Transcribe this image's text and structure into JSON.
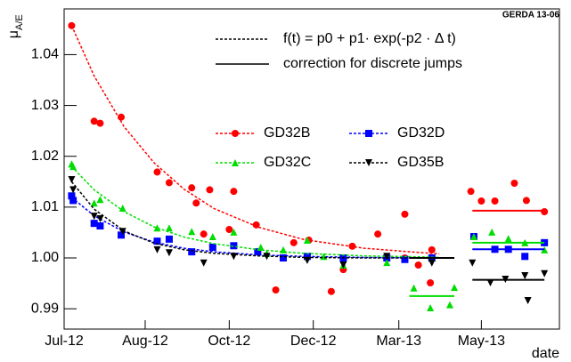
{
  "chart_data": {
    "type": "scatter",
    "corner_label": "GERDA 13-06",
    "ylabel": "μ",
    "ylabel_sub": "A/E",
    "xlabel": "date",
    "fit_label": "f(t) = p0 + p1· exp(-p2 · Δ t)",
    "jump_label": "correction for discrete jumps",
    "xlim": [
      0,
      330
    ],
    "ylim": [
      0.986,
      1.049
    ],
    "xticks": [
      {
        "value": 0,
        "label": "Jul-12"
      },
      {
        "value": 54,
        "label": "Aug-12"
      },
      {
        "value": 110,
        "label": "Oct-12"
      },
      {
        "value": 166,
        "label": "Dec-12"
      },
      {
        "value": 223,
        "label": "Mar-13"
      },
      {
        "value": 278,
        "label": "May-13"
      }
    ],
    "yticks": [
      0.99,
      {
        "value": 1,
        "label": "1.00"
      },
      1.01,
      1.02,
      1.03,
      1.04
    ],
    "series": [
      {
        "name": "GD32B",
        "color": "#ff0000",
        "marker": "circle",
        "x": [
          5,
          20,
          24,
          38,
          62,
          70,
          85,
          88,
          97,
          93,
          113,
          110,
          128,
          141,
          153,
          163,
          178,
          186,
          192,
          209,
          227,
          227,
          236,
          244,
          245,
          271,
          278,
          287,
          300,
          308,
          320
        ],
        "values": [
          1.0457,
          1.0269,
          1.0265,
          1.0277,
          1.0169,
          1.0148,
          1.0138,
          1.0108,
          1.0134,
          1.0047,
          1.0131,
          1.0056,
          1.0065,
          0.9937,
          1.003,
          1.0035,
          0.9934,
          0.9977,
          1.0023,
          1.0047,
          1.0,
          1.0086,
          0.9986,
          0.9951,
          1.0016,
          1.0131,
          1.0112,
          1.0112,
          1.0147,
          1.0113,
          1.0091
        ],
        "fit_x": [
          5,
          20,
          40,
          60,
          80,
          100,
          130,
          160,
          200,
          240,
          250
        ],
        "fit": [
          1.0457,
          1.0358,
          1.0258,
          1.0187,
          1.0135,
          1.0097,
          1.006,
          1.0036,
          1.0019,
          1.001,
          1.0008
        ]
      },
      {
        "name": "GD32D",
        "color": "#0000ff",
        "marker": "square",
        "x": [
          5,
          6,
          20,
          24,
          38,
          62,
          70,
          85,
          99,
          113,
          129,
          146,
          162,
          186,
          215,
          227,
          245,
          273,
          287,
          296,
          307,
          320
        ],
        "values": [
          1.0122,
          1.0113,
          1.0068,
          1.0063,
          1.0045,
          1.0033,
          1.0037,
          1.0012,
          1.0021,
          1.0024,
          1.0012,
          1.0,
          1.0003,
          1.0,
          1.0,
          0.9997,
          1.0,
          1.0042,
          1.0017,
          1.0017,
          1.0003,
          1.003
        ],
        "fit_x": [
          5,
          20,
          40,
          60,
          80,
          100,
          130,
          160,
          200,
          240,
          250
        ],
        "fit": [
          1.0119,
          1.0083,
          1.0051,
          1.0031,
          1.0019,
          1.0012,
          1.0006,
          1.0003,
          1.0001,
          1.0,
          1.0
        ]
      },
      {
        "name": "GD32C",
        "color": "#00dd00",
        "marker": "triangle-up",
        "x": [
          5,
          6,
          20,
          24,
          39,
          62,
          70,
          85,
          99,
          113,
          131,
          135,
          146,
          162,
          173,
          186,
          215,
          233,
          244,
          257,
          260,
          273,
          285,
          296,
          307,
          320
        ],
        "values": [
          1.0185,
          1.018,
          1.0108,
          1.0115,
          1.0098,
          1.0059,
          1.0059,
          1.0052,
          1.0042,
          1.0051,
          1.0021,
          1.0009,
          1.0016,
          1.0035,
          1.0003,
          0.9986,
          0.9991,
          0.9941,
          0.9902,
          0.9908,
          0.9942,
          1.0042,
          1.0051,
          1.0038,
          1.003,
          1.0016
        ],
        "fit_x": [
          5,
          20,
          40,
          60,
          80,
          100,
          130,
          160,
          200,
          240,
          250
        ],
        "fit": [
          1.018,
          1.0134,
          1.0091,
          1.0061,
          1.0041,
          1.0028,
          1.0016,
          1.0009,
          1.0004,
          1.0002,
          1.0001
        ]
      },
      {
        "name": "GD35B",
        "color": "#000000",
        "marker": "triangle-down",
        "x": [
          5,
          6,
          20,
          24,
          39,
          62,
          70,
          93,
          113,
          135,
          162,
          186,
          215,
          245,
          272,
          284,
          294,
          307,
          309,
          320
        ],
        "values": [
          1.0154,
          1.0134,
          1.0082,
          1.0077,
          1.0052,
          1.0016,
          1.001,
          0.999,
          1.0003,
          1.0003,
          0.9995,
          0.9986,
          1.0003,
          0.999,
          0.999,
          0.9951,
          0.9958,
          0.9965,
          0.9916,
          0.9969
        ],
        "fit_x": [
          5,
          20,
          40,
          60,
          80,
          100,
          130,
          160,
          200,
          240,
          250
        ],
        "fit": [
          1.015,
          1.0096,
          1.0053,
          1.0029,
          1.0016,
          1.0009,
          1.0004,
          1.0001,
          1.0,
          1.0,
          1.0
        ]
      }
    ],
    "jumps": [
      {
        "color": "#ff0000",
        "x": [
          272,
          320
        ],
        "value": 1.0093
      },
      {
        "color": "#00dd00",
        "x": [
          272,
          320
        ],
        "value": 1.003
      },
      {
        "color": "#0000ff",
        "x": [
          272,
          320
        ],
        "value": 1.0017
      },
      {
        "color": "#000000",
        "x": [
          272,
          320
        ],
        "value": 0.9957
      },
      {
        "color": "#00dd00",
        "x": [
          230,
          260
        ],
        "value": 0.9925
      },
      {
        "color": "#000000",
        "x": [
          230,
          260
        ],
        "value": 1.0
      }
    ]
  }
}
